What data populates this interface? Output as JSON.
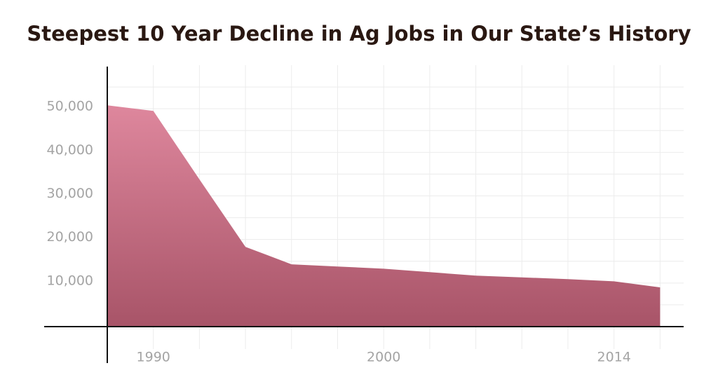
{
  "chart_data": {
    "type": "area",
    "title": "Steepest 10 Year Decline in Ag Jobs in Our State’s History",
    "categories": [
      null,
      "1990",
      null,
      null,
      null,
      null,
      "2000",
      null,
      null,
      null,
      null,
      "2014",
      null
    ],
    "values": [
      50800,
      49500,
      33800,
      18300,
      14300,
      13800,
      13300,
      12500,
      11700,
      11300,
      10900,
      10400,
      9000
    ],
    "ylim": [
      0,
      60000
    ],
    "yticks": [
      {
        "value": 10000,
        "label": "10,000"
      },
      {
        "value": 20000,
        "label": "20,000"
      },
      {
        "value": 30000,
        "label": "30,000"
      },
      {
        "value": 40000,
        "label": "40,000"
      },
      {
        "value": 50000,
        "label": "50,000"
      }
    ],
    "y_minor_ticks": [
      5000,
      15000,
      25000,
      35000,
      45000,
      55000
    ],
    "grid": true,
    "gradient": [
      "#de879d",
      "#a85468"
    ]
  }
}
